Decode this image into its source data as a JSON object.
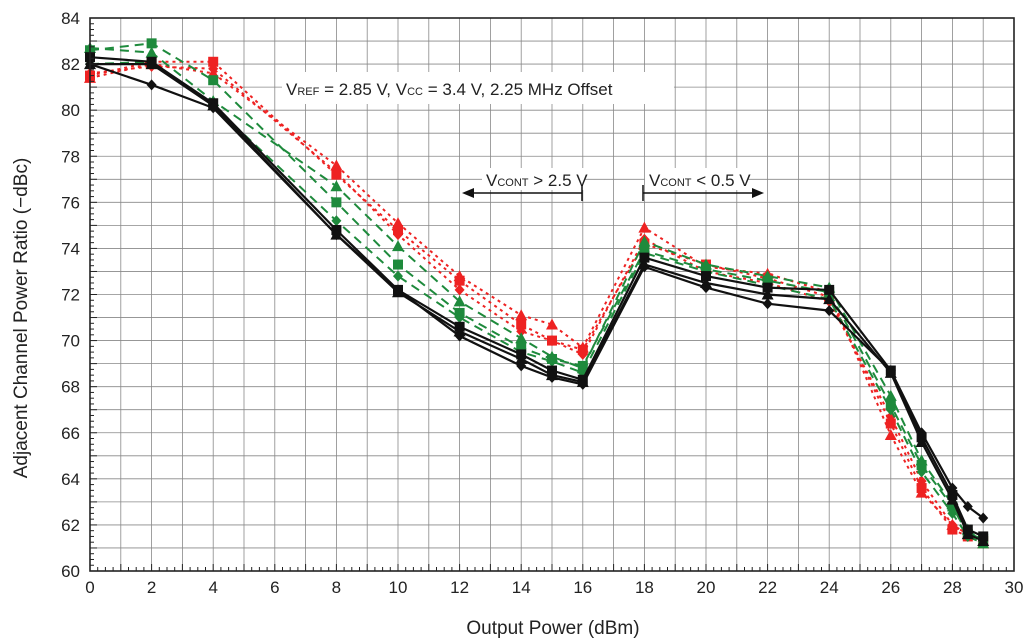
{
  "chart_data": {
    "type": "line",
    "title": "",
    "xlabel": "Output Power (dBm)",
    "ylabel": "Adjacent Channel Power Ratio (−dBc)",
    "xlim": [
      0,
      30
    ],
    "ylim": [
      60,
      84
    ],
    "x_ticks": [
      "0",
      "2",
      "4",
      "6",
      "8",
      "10",
      "12",
      "14",
      "16",
      "18",
      "20",
      "22",
      "24",
      "26",
      "28",
      "30"
    ],
    "y_ticks": [
      "60",
      "62",
      "64",
      "66",
      "68",
      "70",
      "72",
      "74",
      "76",
      "78",
      "80",
      "82",
      "84"
    ],
    "grid": true,
    "annotations": {
      "conditions": {
        "v1": "V",
        "v1_sub": "REF",
        "v1_rest": " = 2.85 V, ",
        "v2": "V",
        "v2_sub": "CC",
        "v2_rest": " = 3.4 V, 2.25 MHz Offset"
      },
      "left_arrow": {
        "v": "V",
        "sub": "CONT",
        "rest": " > 2.5 V"
      },
      "right_arrow": {
        "v": "V",
        "sub": "CONT",
        "rest": " < 0.5 V"
      }
    },
    "colors": {
      "black": "#111111",
      "green": "#1e8a3c",
      "red": "#ee2222",
      "grid": "#888888"
    },
    "x": [
      0,
      2,
      4,
      8,
      10,
      12,
      14,
      15,
      16,
      18,
      20,
      22,
      24,
      26,
      27,
      28,
      28.5,
      29
    ],
    "series": [
      {
        "color": "black",
        "dash": "solid",
        "marker": "square",
        "values": [
          82.3,
          82.1,
          80.3,
          74.8,
          72.2,
          70.6,
          69.4,
          68.7,
          68.3,
          73.6,
          72.8,
          72.3,
          72.2,
          68.7,
          65.8,
          63.3,
          61.8,
          61.5
        ]
      },
      {
        "color": "black",
        "dash": "solid",
        "marker": "triangle",
        "values": [
          82.0,
          82.0,
          80.2,
          74.6,
          72.1,
          70.4,
          69.2,
          68.5,
          68.2,
          73.3,
          72.5,
          72.0,
          71.8,
          68.6,
          65.6,
          63.1,
          61.6,
          61.3
        ]
      },
      {
        "color": "black",
        "dash": "solid",
        "marker": "diamond",
        "values": [
          82.0,
          81.1,
          80.1,
          74.6,
          72.2,
          70.2,
          68.9,
          68.4,
          68.1,
          73.2,
          72.3,
          71.6,
          71.3,
          68.7,
          66.0,
          63.6,
          62.8,
          62.3
        ]
      },
      {
        "color": "green",
        "dash": "dash",
        "marker": "square",
        "values": [
          82.6,
          82.9,
          81.3,
          76.0,
          73.3,
          71.2,
          69.7,
          69.2,
          68.9,
          73.9,
          73.1,
          72.6,
          72.1,
          67.2,
          64.6,
          62.8,
          61.6,
          61.4
        ]
      },
      {
        "color": "green",
        "dash": "dash",
        "marker": "triangle",
        "values": [
          82.7,
          82.5,
          80.4,
          76.7,
          74.1,
          71.7,
          70.1,
          69.3,
          68.8,
          74.3,
          73.3,
          72.8,
          72.3,
          67.6,
          64.8,
          62.9,
          61.8,
          61.2
        ]
      },
      {
        "color": "green",
        "dash": "dash",
        "marker": "diamond",
        "values": [
          82.0,
          82.1,
          80.2,
          75.2,
          72.8,
          71.0,
          69.5,
          69.1,
          68.6,
          73.8,
          73.0,
          72.4,
          71.8,
          67.0,
          64.3,
          62.5,
          61.5,
          61.2
        ]
      },
      {
        "color": "red",
        "dash": "dot",
        "marker": "square",
        "values": [
          81.5,
          82.1,
          82.1,
          77.2,
          74.8,
          72.6,
          70.7,
          70.0,
          69.6,
          74.2,
          73.3,
          72.7,
          71.9,
          66.4,
          63.6,
          61.8,
          61.5,
          61.3
        ]
      },
      {
        "color": "red",
        "dash": "dot",
        "marker": "triangle",
        "values": [
          81.4,
          82.0,
          81.6,
          77.6,
          75.1,
          72.8,
          71.1,
          70.7,
          69.7,
          74.9,
          73.2,
          72.9,
          72.1,
          65.9,
          63.4,
          62.0,
          61.6,
          61.2
        ]
      },
      {
        "color": "red",
        "dash": "dot",
        "marker": "diamond",
        "values": [
          81.6,
          81.9,
          81.8,
          77.3,
          74.6,
          72.2,
          70.4,
          70.0,
          69.4,
          74.4,
          73.0,
          72.5,
          71.7,
          66.7,
          63.9,
          62.0,
          61.6,
          61.4
        ]
      }
    ]
  }
}
